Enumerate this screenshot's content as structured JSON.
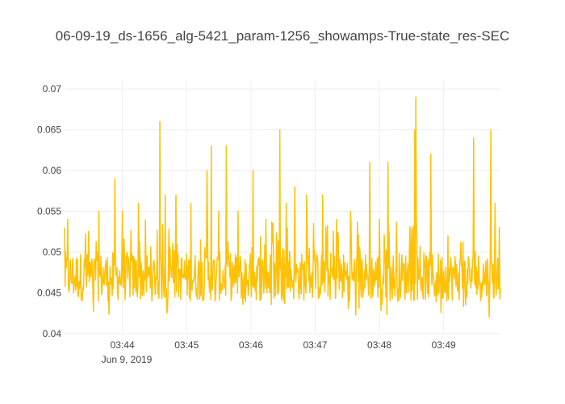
{
  "chart_data": {
    "type": "line",
    "title": "06-09-19_ds-1656_alg-5421_param-1256_showamps-True-state_res-SEC",
    "xlabel": "",
    "ylabel": "",
    "x_start": "2019-06-09 03:43:06",
    "x_end": "2019-06-09 03:49:53",
    "ylim": [
      0.04,
      0.071
    ],
    "grid": true,
    "legend": "none",
    "line_color": "#FFC107",
    "x_ticks": [
      "03:44",
      "03:45",
      "03:46",
      "03:47",
      "03:48",
      "03:49"
    ],
    "x_tick_sublabel": "Jun 9, 2019",
    "y_ticks": [
      "0.04",
      "0.045",
      "0.05",
      "0.055",
      "0.06",
      "0.065",
      "0.07"
    ],
    "peaks": [
      {
        "t": "03:43:06",
        "v": 0.053
      },
      {
        "t": "03:43:09",
        "v": 0.054
      },
      {
        "t": "03:43:38",
        "v": 0.055
      },
      {
        "t": "03:43:53",
        "v": 0.059
      },
      {
        "t": "03:44:00",
        "v": 0.055
      },
      {
        "t": "03:44:15",
        "v": 0.056
      },
      {
        "t": "03:44:35",
        "v": 0.066
      },
      {
        "t": "03:44:40",
        "v": 0.057
      },
      {
        "t": "03:44:50",
        "v": 0.057
      },
      {
        "t": "03:45:04",
        "v": 0.056
      },
      {
        "t": "03:45:19",
        "v": 0.06
      },
      {
        "t": "03:45:23",
        "v": 0.063
      },
      {
        "t": "03:45:30",
        "v": 0.055
      },
      {
        "t": "03:45:37",
        "v": 0.063
      },
      {
        "t": "03:45:48",
        "v": 0.055
      },
      {
        "t": "03:46:02",
        "v": 0.06
      },
      {
        "t": "03:46:14",
        "v": 0.054
      },
      {
        "t": "03:46:27",
        "v": 0.065
      },
      {
        "t": "03:46:33",
        "v": 0.056
      },
      {
        "t": "03:46:41",
        "v": 0.058
      },
      {
        "t": "03:46:52",
        "v": 0.057
      },
      {
        "t": "03:47:07",
        "v": 0.057
      },
      {
        "t": "03:47:20",
        "v": 0.054
      },
      {
        "t": "03:47:33",
        "v": 0.055
      },
      {
        "t": "03:47:51",
        "v": 0.061
      },
      {
        "t": "03:48:00",
        "v": 0.054
      },
      {
        "t": "03:48:08",
        "v": 0.061
      },
      {
        "t": "03:48:33",
        "v": 0.065
      },
      {
        "t": "03:48:34",
        "v": 0.069
      },
      {
        "t": "03:48:48",
        "v": 0.062
      },
      {
        "t": "03:49:04",
        "v": 0.052
      },
      {
        "t": "03:49:28",
        "v": 0.064
      },
      {
        "t": "03:49:44",
        "v": 0.065
      },
      {
        "t": "03:49:48",
        "v": 0.056
      }
    ],
    "baseline_range": [
      0.044,
      0.05
    ],
    "min_value": 0.041
  }
}
